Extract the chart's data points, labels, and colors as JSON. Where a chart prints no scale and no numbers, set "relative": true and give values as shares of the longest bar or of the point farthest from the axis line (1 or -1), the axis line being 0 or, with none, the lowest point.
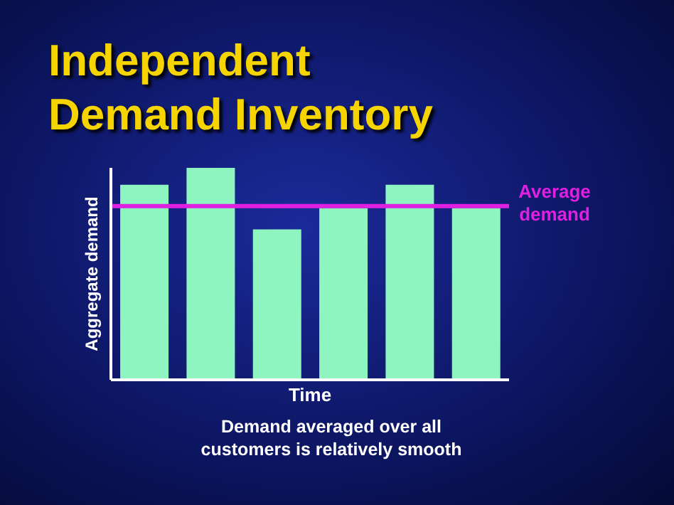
{
  "chart_data": {
    "type": "bar",
    "title": "Independent Demand Inventory",
    "xlabel": "Time",
    "ylabel": "Aggregate demand",
    "categories": [
      null,
      null,
      null,
      null,
      null,
      null
    ],
    "values": [
      0.92,
      1,
      0.71,
      0.81,
      0.92,
      0.81
    ],
    "color": "#8ef5c0",
    "relative": true,
    "grid": false,
    "legend": false,
    "ref_lines": [
      {
        "axis": "y",
        "value": 0.82,
        "label": "Average demand",
        "color": "#e020e0"
      }
    ],
    "annotations": [
      "Demand averaged over all customers is relatively smooth"
    ]
  }
}
